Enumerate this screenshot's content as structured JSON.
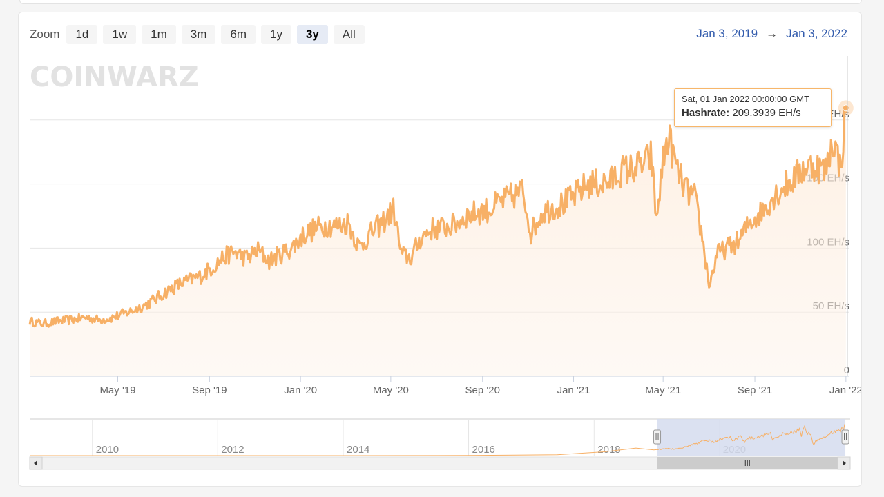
{
  "zoom": {
    "label": "Zoom",
    "buttons": [
      "1d",
      "1w",
      "1m",
      "3m",
      "6m",
      "1y",
      "3y",
      "All"
    ],
    "active": "3y"
  },
  "range": {
    "from": "Jan 3, 2019",
    "arrow": "→",
    "to": "Jan 3, 2022"
  },
  "watermark": "COINWARZ",
  "tooltip": {
    "date": "Sat, 01 Jan 2022 00:00:00 GMT",
    "label": "Hashrate:",
    "value": "209.3939 EH/s"
  },
  "colors": {
    "line": "#f7b066",
    "accent": "#335cad",
    "navigator_mask": "#d5dcee"
  },
  "chart_data": {
    "type": "line",
    "y_unit": "EH/s",
    "ylim": [
      0,
      250
    ],
    "xlim": [
      "2019-01-03",
      "2022-01-03"
    ],
    "x_tick_labels": [
      "May '19",
      "Sep '19",
      "Jan '20",
      "May '20",
      "Sep '20",
      "Jan '21",
      "May '21",
      "Sep '21",
      "Jan '22"
    ],
    "x_tick_dates": [
      "2019-05-01",
      "2019-09-01",
      "2020-01-01",
      "2020-05-01",
      "2020-09-01",
      "2021-01-01",
      "2021-05-01",
      "2021-09-01",
      "2022-01-01"
    ],
    "y_ticks": [
      0,
      50,
      100,
      150,
      200
    ],
    "y_tick_labels": [
      "0",
      "50 EH/s",
      "100 EH/s",
      "150 EH/s",
      "EH/s"
    ],
    "series": [
      {
        "values": [
          [
            "2019-01-03",
            43
          ],
          [
            "2019-01-20",
            41
          ],
          [
            "2019-02-10",
            43
          ],
          [
            "2019-03-01",
            44
          ],
          [
            "2019-03-20",
            46
          ],
          [
            "2019-04-05",
            44
          ],
          [
            "2019-04-20",
            45
          ],
          [
            "2019-05-05",
            48
          ],
          [
            "2019-05-20",
            51
          ],
          [
            "2019-06-05",
            55
          ],
          [
            "2019-06-20",
            60
          ],
          [
            "2019-07-05",
            66
          ],
          [
            "2019-07-20",
            71
          ],
          [
            "2019-08-05",
            75
          ],
          [
            "2019-08-20",
            78
          ],
          [
            "2019-09-05",
            85
          ],
          [
            "2019-09-20",
            93
          ],
          [
            "2019-10-05",
            97
          ],
          [
            "2019-10-20",
            92
          ],
          [
            "2019-11-05",
            98
          ],
          [
            "2019-11-20",
            90
          ],
          [
            "2019-12-05",
            95
          ],
          [
            "2019-12-20",
            100
          ],
          [
            "2020-01-05",
            110
          ],
          [
            "2020-01-20",
            115
          ],
          [
            "2020-02-05",
            118
          ],
          [
            "2020-02-20",
            117
          ],
          [
            "2020-03-05",
            120
          ],
          [
            "2020-03-20",
            100
          ],
          [
            "2020-04-05",
            112
          ],
          [
            "2020-04-20",
            120
          ],
          [
            "2020-05-05",
            130
          ],
          [
            "2020-05-15",
            95
          ],
          [
            "2020-05-28",
            92
          ],
          [
            "2020-06-10",
            108
          ],
          [
            "2020-06-25",
            115
          ],
          [
            "2020-07-10",
            116
          ],
          [
            "2020-07-25",
            118
          ],
          [
            "2020-08-10",
            125
          ],
          [
            "2020-08-25",
            128
          ],
          [
            "2020-09-10",
            130
          ],
          [
            "2020-09-25",
            136
          ],
          [
            "2020-10-10",
            140
          ],
          [
            "2020-10-25",
            145
          ],
          [
            "2020-11-05",
            112
          ],
          [
            "2020-11-20",
            128
          ],
          [
            "2020-12-05",
            132
          ],
          [
            "2020-12-20",
            135
          ],
          [
            "2021-01-05",
            142
          ],
          [
            "2021-01-20",
            150
          ],
          [
            "2021-02-05",
            150
          ],
          [
            "2021-02-20",
            152
          ],
          [
            "2021-03-05",
            160
          ],
          [
            "2021-03-20",
            162
          ],
          [
            "2021-04-05",
            165
          ],
          [
            "2021-04-15",
            172
          ],
          [
            "2021-04-22",
            122
          ],
          [
            "2021-05-01",
            168
          ],
          [
            "2021-05-08",
            188
          ],
          [
            "2021-05-20",
            160
          ],
          [
            "2021-06-01",
            145
          ],
          [
            "2021-06-12",
            140
          ],
          [
            "2021-06-22",
            110
          ],
          [
            "2021-07-02",
            70
          ],
          [
            "2021-07-12",
            95
          ],
          [
            "2021-07-25",
            100
          ],
          [
            "2021-08-10",
            105
          ],
          [
            "2021-08-25",
            120
          ],
          [
            "2021-09-10",
            128
          ],
          [
            "2021-09-25",
            140
          ],
          [
            "2021-10-10",
            148
          ],
          [
            "2021-10-25",
            155
          ],
          [
            "2021-11-05",
            162
          ],
          [
            "2021-11-20",
            165
          ],
          [
            "2021-12-05",
            160
          ],
          [
            "2021-12-15",
            185
          ],
          [
            "2021-12-25",
            162
          ],
          [
            "2022-01-01",
            209.4
          ]
        ]
      }
    ],
    "navigator": {
      "x_tick_labels": [
        "2010",
        "2012",
        "2014",
        "2016",
        "2018",
        "2020"
      ],
      "selected_range": [
        "2019-01-03",
        "2022-01-03"
      ]
    }
  }
}
